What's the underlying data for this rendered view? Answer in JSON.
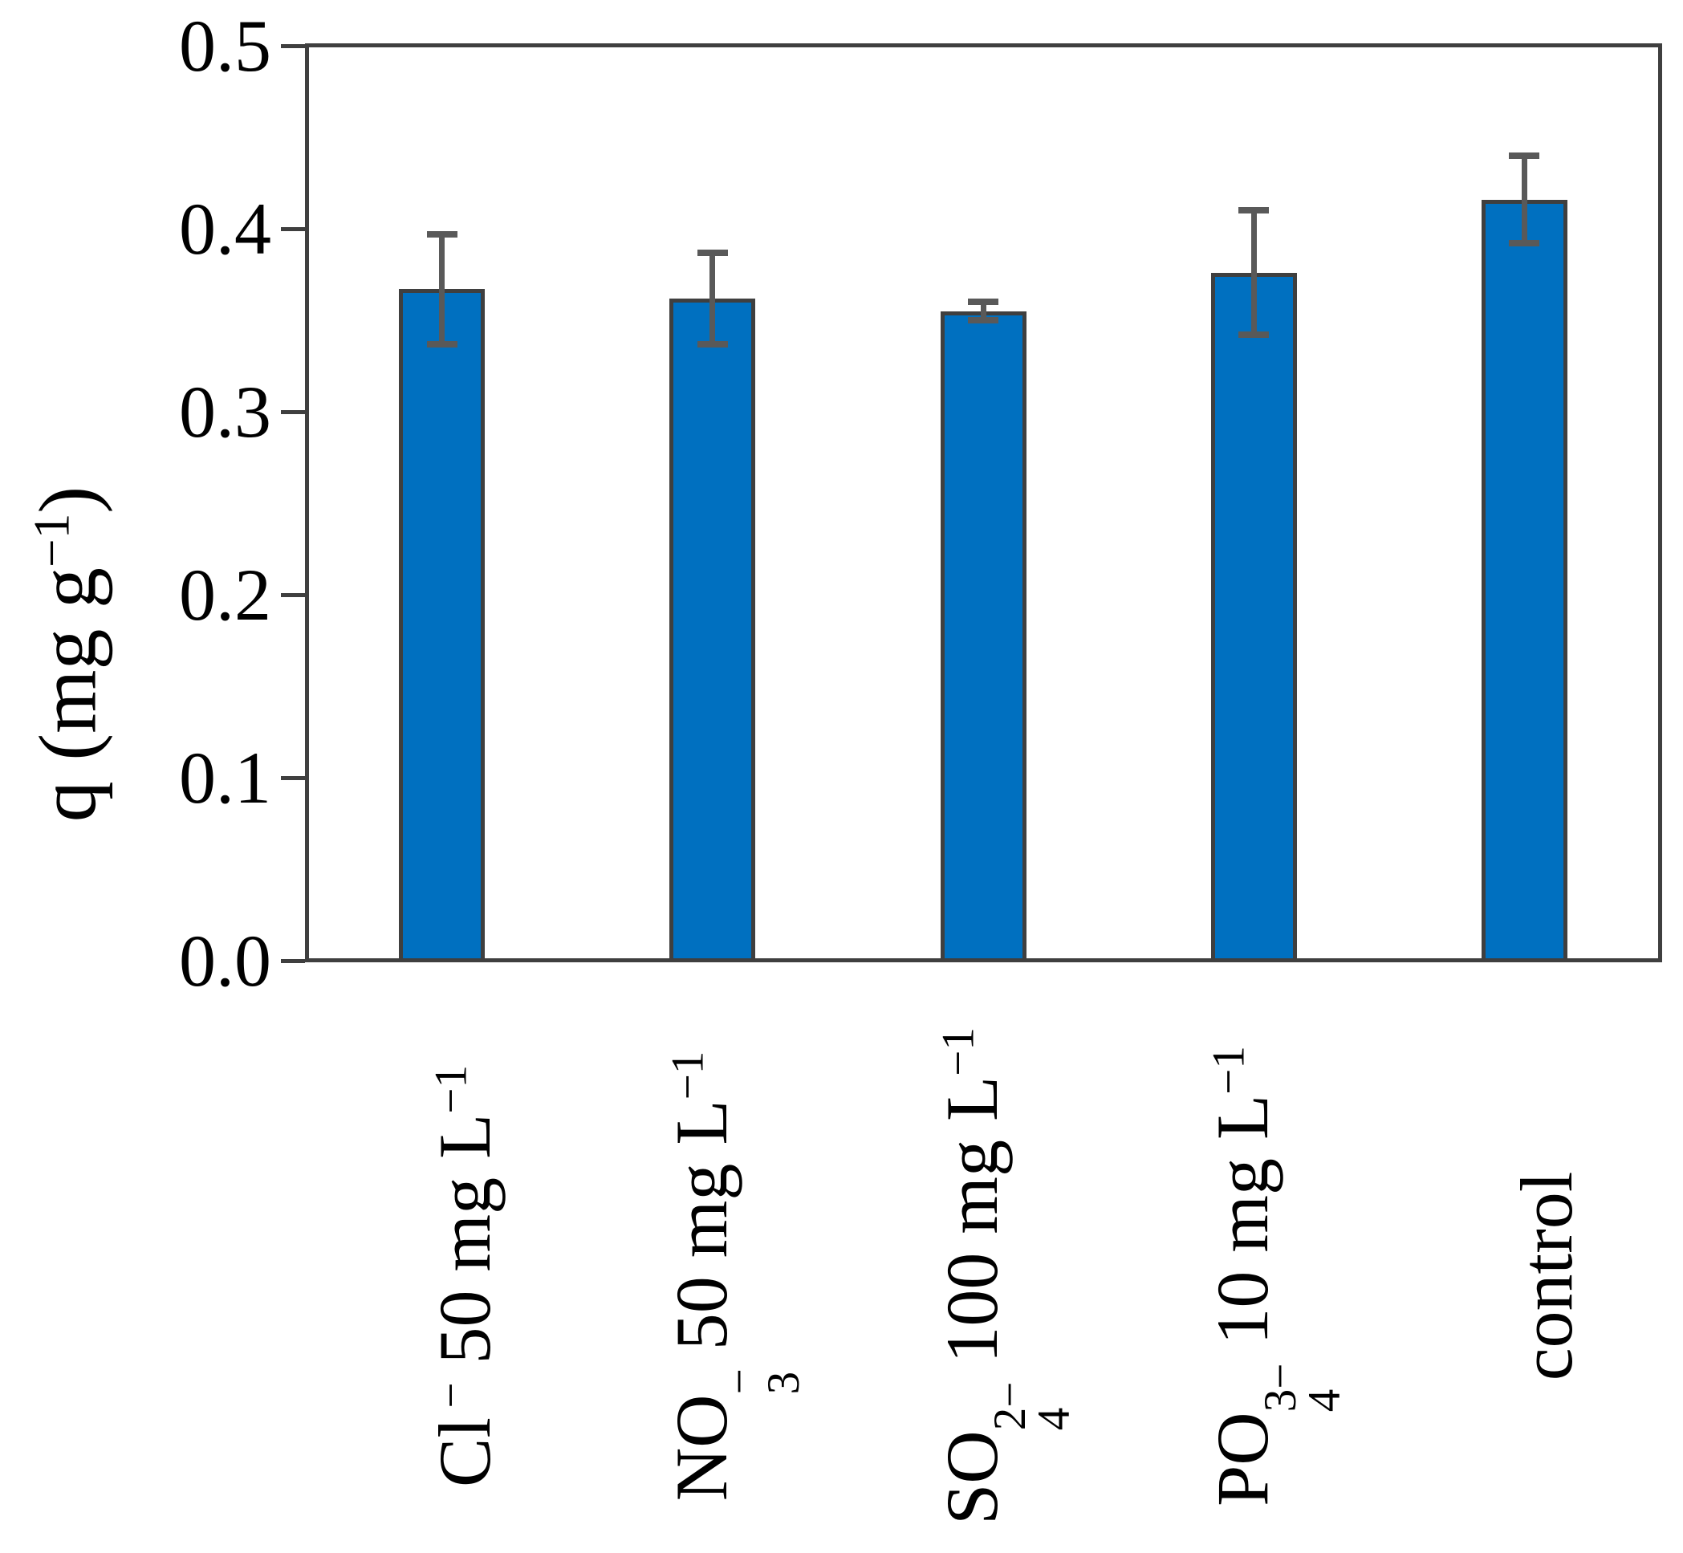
{
  "figure": {
    "background": "#FFFFFF"
  },
  "chart_data": {
    "type": "bar",
    "title": "",
    "xlabel": "",
    "ylabel": "q (mg g−1)",
    "ylabel_rich": [
      {
        "t": "text",
        "v": "q (mg g"
      },
      {
        "t": "sup",
        "v": "−1"
      },
      {
        "t": "text",
        "v": ")"
      }
    ],
    "categories": [
      "Cl− 50 mg L−1",
      "NO3− 50 mg L−1",
      "SO42− 100 mg L−1",
      "PO43− 10 mg L−1",
      "control"
    ],
    "categories_rich": [
      [
        {
          "t": "text",
          "v": "Cl"
        },
        {
          "t": "sup",
          "v": " −"
        },
        {
          "t": "text",
          "v": " 50 mg L"
        },
        {
          "t": "sup",
          "v": "−1"
        }
      ],
      [
        {
          "t": "text",
          "v": "NO"
        },
        {
          "t": "stack",
          "sup": "−",
          "sub": "3"
        },
        {
          "t": "text",
          "v": " 50 mg L"
        },
        {
          "t": "sup",
          "v": "−1"
        }
      ],
      [
        {
          "t": "text",
          "v": "SO"
        },
        {
          "t": "stack",
          "sup": "2−",
          "sub": "4"
        },
        {
          "t": "text",
          "v": " 100 mg L"
        },
        {
          "t": "sup",
          "v": "−1"
        }
      ],
      [
        {
          "t": "text",
          "v": "PO"
        },
        {
          "t": "stack",
          "sup": "3−",
          "sub": "4"
        },
        {
          "t": "text",
          "v": " 10 mg L"
        },
        {
          "t": "sup",
          "v": "−1"
        }
      ],
      [
        {
          "t": "text",
          "v": "control"
        }
      ]
    ],
    "values": [
      0.367,
      0.362,
      0.355,
      0.376,
      0.416
    ],
    "errors": [
      0.03,
      0.025,
      0.005,
      0.034,
      0.024
    ],
    "ylim": [
      0,
      0.5
    ],
    "yticks": [
      0.0,
      0.1,
      0.2,
      0.3,
      0.4,
      0.5
    ],
    "ytick_labels": [
      "0.0",
      "0.1",
      "0.2",
      "0.3",
      "0.4",
      "0.5"
    ],
    "grid": false,
    "legend_position": "none",
    "bar_color": "#0070C0",
    "bar_edge_color": "#3F3F3F",
    "error_color": "#595959",
    "axis_color": "#3F3F3F",
    "text_color": "#000000"
  }
}
